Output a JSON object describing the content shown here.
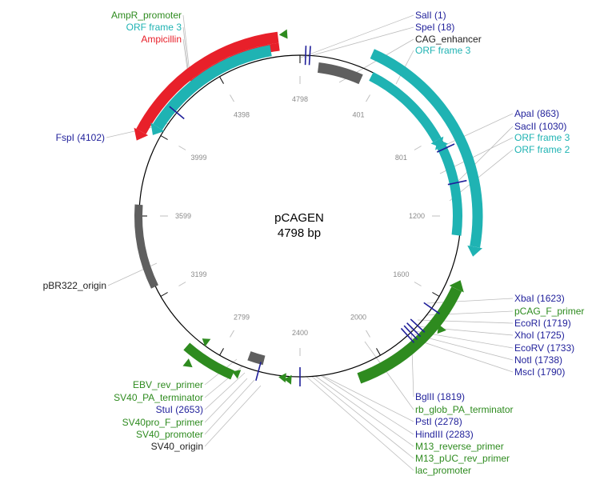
{
  "plasmid": {
    "name": "pCAGEN",
    "size_text": "4798 bp",
    "length": 4798
  },
  "colors": {
    "enzyme": "#1f1f9a",
    "primer": "#2e8b1f",
    "orf": "#1fb3b3",
    "promoter": "#2e8b1f",
    "ampicillin": "#e8202a",
    "misc": "#222222",
    "ori": "#5f5f5f",
    "leader": "#bdbdbd"
  },
  "ticks": [
    "4798",
    "401",
    "801",
    "1200",
    "1600",
    "2000",
    "2400",
    "2799",
    "3199",
    "3599",
    "3999",
    "4398"
  ],
  "labels": [
    {
      "text": "AmpR_promoter",
      "type": "promoter"
    },
    {
      "text": "ORF frame 3",
      "type": "orf"
    },
    {
      "text": "Ampicillin",
      "type": "ampicillin"
    },
    {
      "text": "FspI (4102)",
      "type": "enzyme"
    },
    {
      "text": "pBR322_origin",
      "type": "misc"
    },
    {
      "text": "EBV_rev_primer",
      "type": "primer"
    },
    {
      "text": "SV40_PA_terminator",
      "type": "primer"
    },
    {
      "text": "StuI (2653)",
      "type": "enzyme"
    },
    {
      "text": "SV40pro_F_primer",
      "type": "primer"
    },
    {
      "text": "SV40_promoter",
      "type": "primer"
    },
    {
      "text": "SV40_origin",
      "type": "misc"
    },
    {
      "text": "SalI (1)",
      "type": "enzyme"
    },
    {
      "text": "SpeI (18)",
      "type": "enzyme"
    },
    {
      "text": "CAG_enhancer",
      "type": "misc"
    },
    {
      "text": "ORF frame 3",
      "type": "orf"
    },
    {
      "text": "ApaI (863)",
      "type": "enzyme"
    },
    {
      "text": "SacII (1030)",
      "type": "enzyme"
    },
    {
      "text": "ORF frame 3",
      "type": "orf"
    },
    {
      "text": "ORF frame 2",
      "type": "orf"
    },
    {
      "text": "XbaI (1623)",
      "type": "enzyme"
    },
    {
      "text": "pCAG_F_primer",
      "type": "primer"
    },
    {
      "text": "EcoRI (1719)",
      "type": "enzyme"
    },
    {
      "text": "XhoI (1725)",
      "type": "enzyme"
    },
    {
      "text": "EcoRV (1733)",
      "type": "enzyme"
    },
    {
      "text": "NotI (1738)",
      "type": "enzyme"
    },
    {
      "text": "MscI (1790)",
      "type": "enzyme"
    },
    {
      "text": "BglII (1819)",
      "type": "enzyme"
    },
    {
      "text": "rb_glob_PA_terminator",
      "type": "primer"
    },
    {
      "text": "PstI (2278)",
      "type": "enzyme"
    },
    {
      "text": "HindIII (2283)",
      "type": "enzyme"
    },
    {
      "text": "M13_reverse_primer",
      "type": "primer"
    },
    {
      "text": "M13_pUC_rev_primer",
      "type": "primer"
    },
    {
      "text": "lac_promoter",
      "type": "primer"
    }
  ]
}
